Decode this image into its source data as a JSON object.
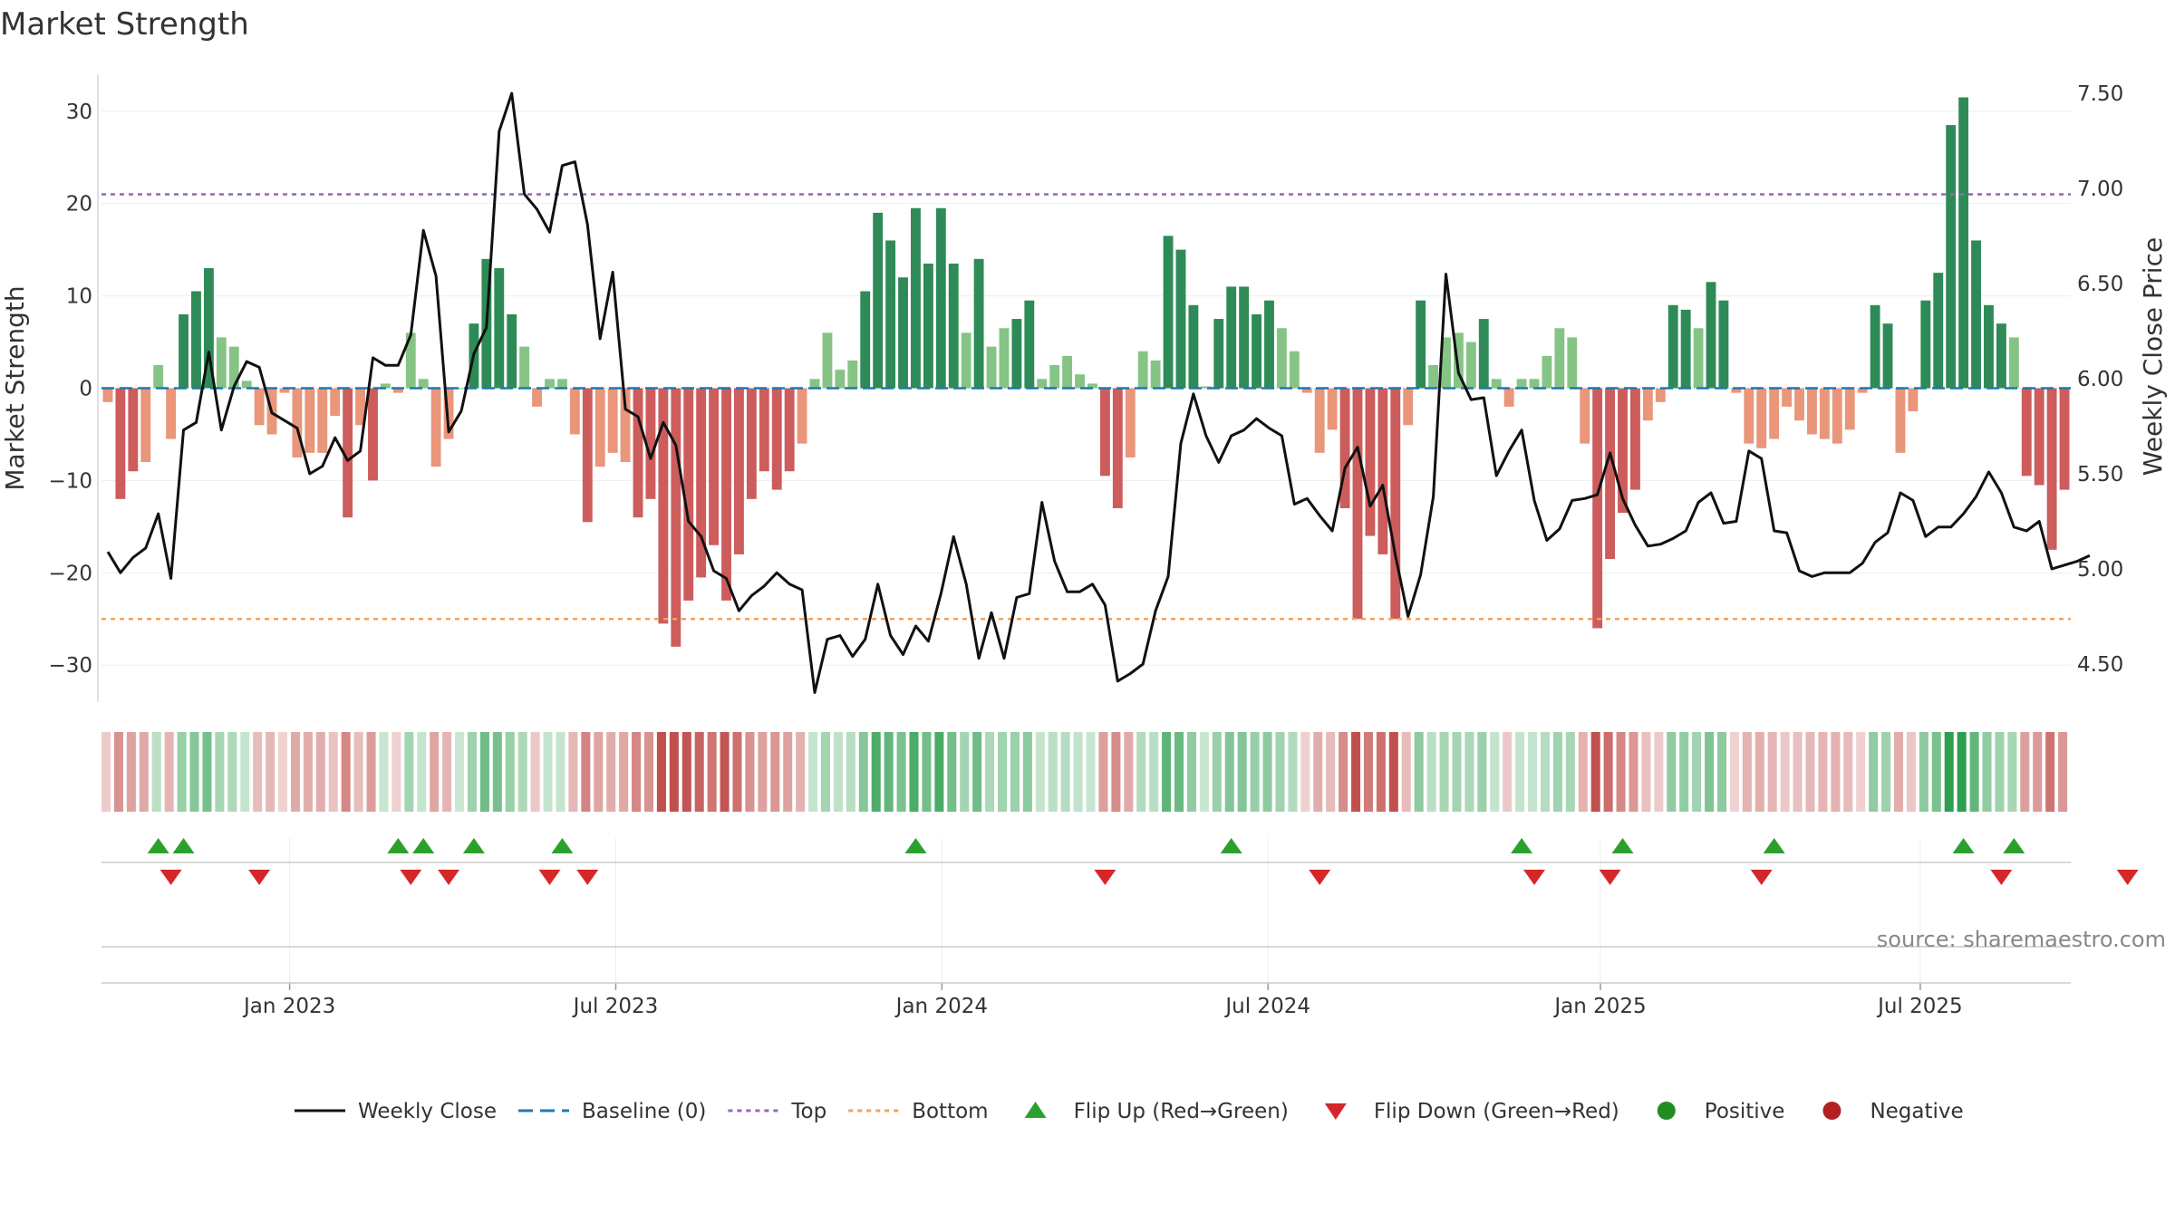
{
  "colors": {
    "pos_dark": "#2e8b57",
    "pos_light": "#86c485",
    "neg_dark": "#cd5c5c",
    "neg_light": "#e9967a",
    "price_line": "#111111",
    "baseline": "#1f77b4",
    "top": "#9467bd",
    "bottom": "#f0a35e",
    "flip_up": "#2ca02c",
    "flip_down": "#d62728",
    "positive": "#228b22",
    "negative": "#b22222"
  },
  "chart_data": {
    "type": "bar",
    "title": "Market Strength",
    "ylabel_left": "Market Strength",
    "ylabel_right": "Weekly Close Price",
    "ylim_left": [
      -34,
      34
    ],
    "yticks_left": [
      {
        "v": 30,
        "label": "30"
      },
      {
        "v": 20,
        "label": "20"
      },
      {
        "v": 10,
        "label": "10"
      },
      {
        "v": 0,
        "label": "0"
      },
      {
        "v": -10,
        "label": "−10"
      },
      {
        "v": -20,
        "label": "−20"
      },
      {
        "v": -30,
        "label": "−30"
      }
    ],
    "ylim_right": [
      4.3,
      7.6
    ],
    "yticks_right": [
      {
        "v": 7.5,
        "label": "7.50"
      },
      {
        "v": 7.0,
        "label": "7.00"
      },
      {
        "v": 6.5,
        "label": "6.50"
      },
      {
        "v": 6.0,
        "label": "6.00"
      },
      {
        "v": 5.5,
        "label": "5.50"
      },
      {
        "v": 5.0,
        "label": "5.00"
      },
      {
        "v": 4.5,
        "label": "4.50"
      }
    ],
    "x_range_weeks": [
      0,
      157
    ],
    "x_ticks": [
      {
        "w": 15,
        "label": "Jan 2023"
      },
      {
        "w": 41,
        "label": "Jul 2023"
      },
      {
        "w": 67,
        "label": "Jan 2024"
      },
      {
        "w": 93,
        "label": "Jul 2024"
      },
      {
        "w": 119.5,
        "label": "Jan 2025"
      },
      {
        "w": 145,
        "label": "Jul 2025"
      }
    ],
    "top_level": 21,
    "bottom_level": -25,
    "baseline": 0,
    "strength": [
      -1.5,
      -12,
      -9,
      -8,
      2.5,
      -5.5,
      8,
      10.5,
      13,
      5.5,
      4.5,
      0.8,
      -4,
      -5,
      -0.5,
      -7.5,
      -7,
      -7,
      -3,
      -14,
      -4,
      -10,
      0.5,
      -0.5,
      6,
      1,
      -8.5,
      -5.5,
      0,
      7,
      14,
      13,
      8,
      4.5,
      -2,
      1,
      1,
      -5,
      -14.5,
      -8.5,
      -7,
      -8,
      -14,
      -12,
      -25.5,
      -28,
      -23,
      -20.5,
      -17,
      -23,
      -18,
      -12,
      -9,
      -11,
      -9,
      -6,
      1,
      6,
      2,
      3,
      10.5,
      19,
      16,
      12,
      19.5,
      13.5,
      19.5,
      13.5,
      6,
      14,
      4.5,
      6.5,
      7.5,
      9.5,
      1,
      2.5,
      3.5,
      1.5,
      0.5,
      -9.5,
      -13,
      -7.5,
      4,
      3,
      16.5,
      15,
      9,
      0.2,
      7.5,
      11,
      11,
      8,
      9.5,
      6.5,
      4,
      -0.5,
      -7,
      -4.5,
      -13,
      -25,
      -16,
      -18,
      -25,
      -4,
      9.5,
      2.5,
      5.5,
      6,
      5,
      7.5,
      1,
      -2,
      1,
      1,
      3.5,
      6.5,
      5.5,
      -6,
      -26,
      -18.5,
      -13.5,
      -11,
      -3.5,
      -1.5,
      9,
      8.5,
      6.5,
      11.5,
      9.5,
      -0.5,
      -6,
      -6.5,
      -5.5,
      -2,
      -3.5,
      -5,
      -5.5,
      -6,
      -4.5,
      -0.5,
      9,
      7,
      -7,
      -2.5,
      9.5,
      12.5,
      28.5,
      31.5,
      16,
      9,
      7,
      5.5,
      -9.5,
      -10.5,
      -17.5,
      -11
    ],
    "price": [
      5.09,
      4.98,
      5.06,
      5.11,
      5.29,
      4.95,
      5.73,
      5.77,
      6.14,
      5.73,
      5.96,
      6.09,
      6.06,
      5.82,
      5.78,
      5.74,
      5.5,
      5.54,
      5.69,
      5.57,
      5.62,
      6.11,
      6.07,
      6.07,
      6.23,
      6.78,
      6.54,
      5.72,
      5.83,
      6.13,
      6.27,
      7.3,
      7.5,
      6.97,
      6.89,
      6.77,
      7.12,
      7.14,
      6.81,
      6.21,
      6.56,
      5.84,
      5.8,
      5.58,
      5.77,
      5.65,
      5.25,
      5.17,
      4.99,
      4.95,
      4.78,
      4.86,
      4.91,
      4.98,
      4.92,
      4.89,
      4.35,
      4.63,
      4.65,
      4.54,
      4.63,
      4.92,
      4.65,
      4.55,
      4.7,
      4.62,
      4.87,
      5.17,
      4.92,
      4.53,
      4.77,
      4.53,
      4.85,
      4.87,
      5.35,
      5.04,
      4.88,
      4.88,
      4.92,
      4.81,
      4.41,
      4.45,
      4.5,
      4.78,
      4.96,
      5.66,
      5.92,
      5.7,
      5.56,
      5.7,
      5.73,
      5.79,
      5.74,
      5.7,
      5.34,
      5.37,
      5.28,
      5.2,
      5.53,
      5.64,
      5.33,
      5.44,
      5.07,
      4.75,
      4.97,
      5.38,
      6.55,
      6.03,
      5.89,
      5.9,
      5.49,
      5.62,
      5.73,
      5.36,
      5.15,
      5.21,
      5.36,
      5.37,
      5.39,
      5.61,
      5.37,
      5.23,
      5.12,
      5.13,
      5.16,
      5.2,
      5.35,
      5.4,
      5.24,
      5.25,
      5.62,
      5.58,
      5.2,
      5.19,
      4.99,
      4.96,
      4.98,
      4.98,
      4.98,
      5.03,
      5.14,
      5.19,
      5.4,
      5.36,
      5.17,
      5.22,
      5.22,
      5.29,
      5.38,
      5.51,
      5.4,
      5.22,
      5.2,
      5.25,
      5.0,
      5.02,
      5.04,
      5.07
    ],
    "flip_up_weeks": [
      4,
      6,
      23,
      25,
      29,
      36,
      64,
      89,
      112,
      120,
      132,
      147,
      151
    ],
    "flip_down_weeks": [
      5,
      12,
      24,
      27,
      35,
      38,
      79,
      96,
      113,
      119,
      131,
      150,
      160
    ]
  },
  "footer": {
    "source": "source: sharemaestro.com"
  },
  "legend": [
    {
      "key": "weekly_close",
      "label": "Weekly Close"
    },
    {
      "key": "baseline",
      "label": "Baseline (0)"
    },
    {
      "key": "top",
      "label": "Top"
    },
    {
      "key": "bottom",
      "label": "Bottom"
    },
    {
      "key": "flip_up",
      "label": "Flip Up (Red→Green)"
    },
    {
      "key": "flip_down",
      "label": "Flip Down (Green→Red)"
    },
    {
      "key": "positive",
      "label": "Positive"
    },
    {
      "key": "negative",
      "label": "Negative"
    }
  ]
}
